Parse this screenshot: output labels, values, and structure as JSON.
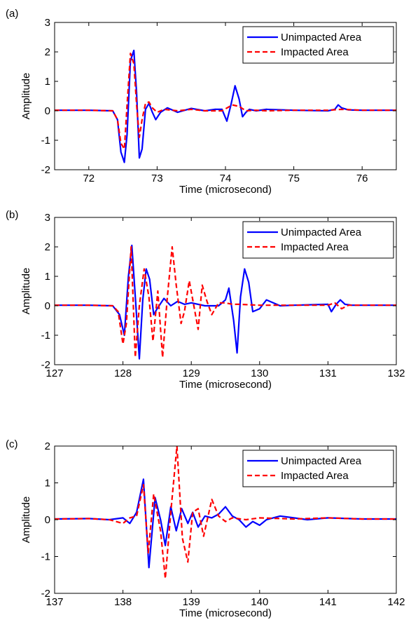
{
  "figure": {
    "panels": [
      {
        "label": "(a)",
        "xlabel": "Time (microsecond)",
        "ylabel": "Amplitude"
      },
      {
        "label": "(b)",
        "xlabel": "Time (microsecond)",
        "ylabel": "Amplitude"
      },
      {
        "label": "(c)",
        "xlabel": "Time (microsecond)",
        "ylabel": "Amplitude"
      }
    ]
  },
  "colors": {
    "unimpacted": "#0000ff",
    "impacted": "#ff0000",
    "axes": "#000000"
  },
  "chart_data": [
    {
      "type": "line",
      "title": "",
      "panel_label": "(a)",
      "xlabel": "Time (microsecond)",
      "ylabel": "Amplitude",
      "xlim": [
        71.5,
        76.5
      ],
      "ylim": [
        -2,
        3
      ],
      "xticks": [
        72,
        73,
        74,
        75,
        76
      ],
      "yticks": [
        -2,
        -1,
        0,
        1,
        2,
        3
      ],
      "legend": "top-right",
      "grid": false,
      "series": [
        {
          "name": "Unimpacted Area",
          "color": "#0000ff",
          "style": "solid",
          "x": [
            71.5,
            72.0,
            72.35,
            72.42,
            72.47,
            72.52,
            72.56,
            72.61,
            72.66,
            72.7,
            72.74,
            72.78,
            72.83,
            72.88,
            72.93,
            72.98,
            73.05,
            73.15,
            73.3,
            73.5,
            73.7,
            73.85,
            73.95,
            74.02,
            74.08,
            74.14,
            74.2,
            74.25,
            74.3,
            74.35,
            74.45,
            74.6,
            75.0,
            75.5,
            75.6,
            75.65,
            75.7,
            75.8,
            76.0,
            76.5
          ],
          "y": [
            0.02,
            0.02,
            0.0,
            -0.3,
            -1.4,
            -1.75,
            -0.8,
            1.7,
            2.05,
            0.6,
            -1.6,
            -1.3,
            0.05,
            0.25,
            -0.05,
            -0.3,
            -0.05,
            0.1,
            -0.05,
            0.08,
            0.0,
            0.05,
            0.05,
            -0.35,
            0.2,
            0.85,
            0.4,
            -0.2,
            -0.05,
            0.05,
            0.0,
            0.05,
            0.02,
            0.0,
            0.05,
            0.2,
            0.1,
            0.03,
            0.02,
            0.02
          ]
        },
        {
          "name": "Impacted Area",
          "color": "#ff0000",
          "style": "dashed",
          "x": [
            71.5,
            72.0,
            72.35,
            72.42,
            72.47,
            72.52,
            72.56,
            72.61,
            72.66,
            72.7,
            72.74,
            72.78,
            72.83,
            72.88,
            72.93,
            73.0,
            73.1,
            73.3,
            73.5,
            73.7,
            73.95,
            74.1,
            74.2,
            74.3,
            74.45,
            74.6,
            75.0,
            75.5,
            75.7,
            76.0,
            76.5
          ],
          "y": [
            0.02,
            0.02,
            0.0,
            -0.3,
            -1.1,
            -1.3,
            0.2,
            1.95,
            1.6,
            0.2,
            -0.9,
            -0.3,
            0.25,
            0.3,
            0.1,
            -0.05,
            0.05,
            0.0,
            0.05,
            0.0,
            0.0,
            0.2,
            0.15,
            0.0,
            0.02,
            0.0,
            0.02,
            0.02,
            0.05,
            0.02,
            0.02
          ]
        }
      ]
    },
    {
      "type": "line",
      "title": "",
      "panel_label": "(b)",
      "xlabel": "Time (microsecond)",
      "ylabel": "Amplitude",
      "xlim": [
        127,
        132
      ],
      "ylim": [
        -2,
        3
      ],
      "xticks": [
        127,
        128,
        129,
        130,
        131,
        132
      ],
      "yticks": [
        -2,
        -1,
        0,
        1,
        2,
        3
      ],
      "legend": "top-right",
      "grid": false,
      "series": [
        {
          "name": "Unimpacted Area",
          "color": "#0000ff",
          "style": "solid",
          "x": [
            127.0,
            127.5,
            127.85,
            127.95,
            128.02,
            128.08,
            128.13,
            128.19,
            128.24,
            128.29,
            128.34,
            128.39,
            128.45,
            128.5,
            128.6,
            128.7,
            128.8,
            128.9,
            129.0,
            129.2,
            129.4,
            129.5,
            129.55,
            129.62,
            129.67,
            129.72,
            129.78,
            129.84,
            129.9,
            130.0,
            130.1,
            130.3,
            130.5,
            131.0,
            131.05,
            131.12,
            131.18,
            131.25,
            131.35,
            131.5,
            132.0
          ],
          "y": [
            0.02,
            0.02,
            0.0,
            -0.3,
            -1.0,
            1.0,
            2.05,
            0.0,
            -1.8,
            0.2,
            1.25,
            0.9,
            -0.3,
            -0.1,
            0.25,
            0.0,
            0.15,
            0.05,
            0.1,
            0.0,
            0.0,
            0.2,
            0.6,
            -0.5,
            -1.6,
            0.3,
            1.25,
            0.8,
            -0.2,
            -0.1,
            0.2,
            0.0,
            0.02,
            0.05,
            -0.2,
            0.05,
            0.2,
            0.05,
            0.02,
            0.02,
            0.02
          ]
        },
        {
          "name": "Impacted Area",
          "color": "#ff0000",
          "style": "dashed",
          "x": [
            127.0,
            127.5,
            127.85,
            127.93,
            128.0,
            128.05,
            128.12,
            128.18,
            128.24,
            128.31,
            128.38,
            128.44,
            128.51,
            128.58,
            128.65,
            128.72,
            128.78,
            128.85,
            128.9,
            128.97,
            129.03,
            129.1,
            129.16,
            129.23,
            129.3,
            129.4,
            129.5,
            129.6,
            129.7,
            130.0,
            131.0,
            131.1,
            131.2,
            131.3,
            131.5,
            132.0
          ],
          "y": [
            0.02,
            0.02,
            0.0,
            -0.2,
            -1.3,
            -0.6,
            2.0,
            -1.75,
            0.0,
            1.25,
            0.3,
            -1.2,
            0.5,
            -1.75,
            0.3,
            2.0,
            0.7,
            -0.6,
            -0.2,
            0.85,
            0.1,
            -0.8,
            0.7,
            0.15,
            -0.3,
            0.1,
            0.1,
            0.05,
            0.05,
            0.02,
            0.02,
            0.1,
            -0.1,
            0.02,
            0.02,
            0.02
          ]
        }
      ]
    },
    {
      "type": "line",
      "title": "",
      "panel_label": "(c)",
      "xlabel": "Time (microsecond)",
      "ylabel": "Amplitude",
      "xlim": [
        137,
        142
      ],
      "ylim": [
        -2,
        2
      ],
      "xticks": [
        137,
        138,
        139,
        140,
        141,
        142
      ],
      "yticks": [
        -2,
        -1,
        0,
        1,
        2
      ],
      "legend": "top-right",
      "grid": false,
      "series": [
        {
          "name": "Unimpacted Area",
          "color": "#0000ff",
          "style": "solid",
          "x": [
            137.0,
            137.5,
            137.8,
            138.0,
            138.1,
            138.2,
            138.3,
            138.38,
            138.47,
            138.55,
            138.62,
            138.7,
            138.78,
            138.86,
            138.95,
            139.02,
            139.1,
            139.2,
            139.3,
            139.4,
            139.5,
            139.6,
            139.7,
            139.8,
            139.9,
            140.0,
            140.1,
            140.3,
            140.5,
            140.7,
            141.0,
            141.5,
            142.0
          ],
          "y": [
            0.02,
            0.03,
            0.0,
            0.05,
            -0.1,
            0.2,
            1.1,
            -1.3,
            0.6,
            0.0,
            -0.7,
            0.35,
            -0.3,
            0.3,
            -0.1,
            0.2,
            -0.2,
            0.1,
            0.05,
            0.15,
            0.35,
            0.1,
            0.0,
            -0.2,
            -0.05,
            -0.15,
            0.0,
            0.1,
            0.05,
            0.0,
            0.05,
            0.02,
            0.02
          ]
        },
        {
          "name": "Impacted Area",
          "color": "#ff0000",
          "style": "dashed",
          "x": [
            137.0,
            137.5,
            137.8,
            138.0,
            138.1,
            138.2,
            138.3,
            138.37,
            138.45,
            138.55,
            138.62,
            138.7,
            138.79,
            138.87,
            138.95,
            139.02,
            139.1,
            139.18,
            139.3,
            139.4,
            139.5,
            139.6,
            139.8,
            140.0,
            140.5,
            141.0,
            141.5,
            142.0
          ],
          "y": [
            0.02,
            0.03,
            0.0,
            -0.1,
            0.05,
            0.1,
            0.95,
            -0.9,
            0.7,
            -0.3,
            -1.6,
            0.2,
            2.0,
            -0.5,
            -1.15,
            0.2,
            0.3,
            -0.45,
            0.55,
            0.1,
            -0.05,
            0.05,
            0.0,
            0.05,
            0.02,
            0.05,
            0.02,
            0.02
          ]
        }
      ]
    }
  ]
}
